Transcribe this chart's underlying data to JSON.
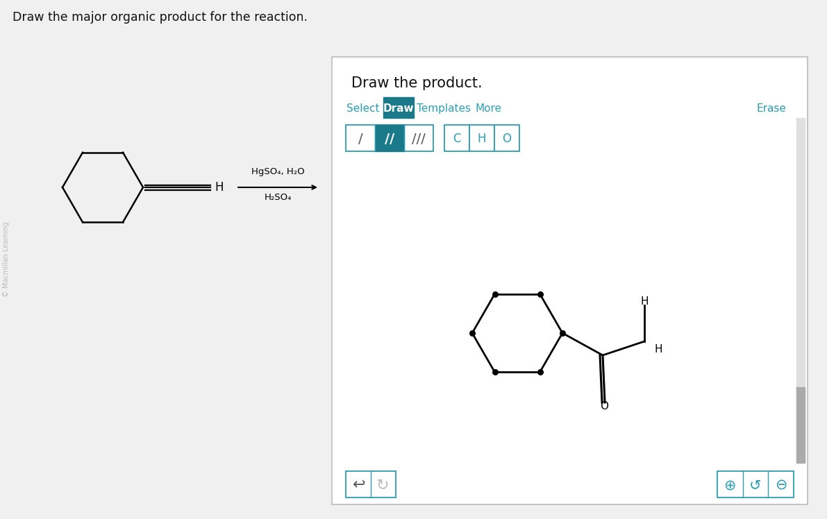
{
  "bg_color": "#f0f0f0",
  "panel_bg": "#ffffff",
  "panel_border": "#cccccc",
  "teal_color": "#1b7a8a",
  "border_teal": "#2d9db0",
  "question_text": "Draw the major organic product for the reaction.",
  "watermark_text": "© Macmillan Learning",
  "reagent_line1": "HgSO₄, H₂O",
  "reagent_line2": "H₂SO₄",
  "title_text": "Draw the product.",
  "tab_labels": [
    "Select",
    "Draw",
    "Templates",
    "More",
    "Erase"
  ],
  "bond_labels": [
    "/",
    "//",
    "///"
  ],
  "atom_labels": [
    "C",
    "H",
    "O"
  ]
}
